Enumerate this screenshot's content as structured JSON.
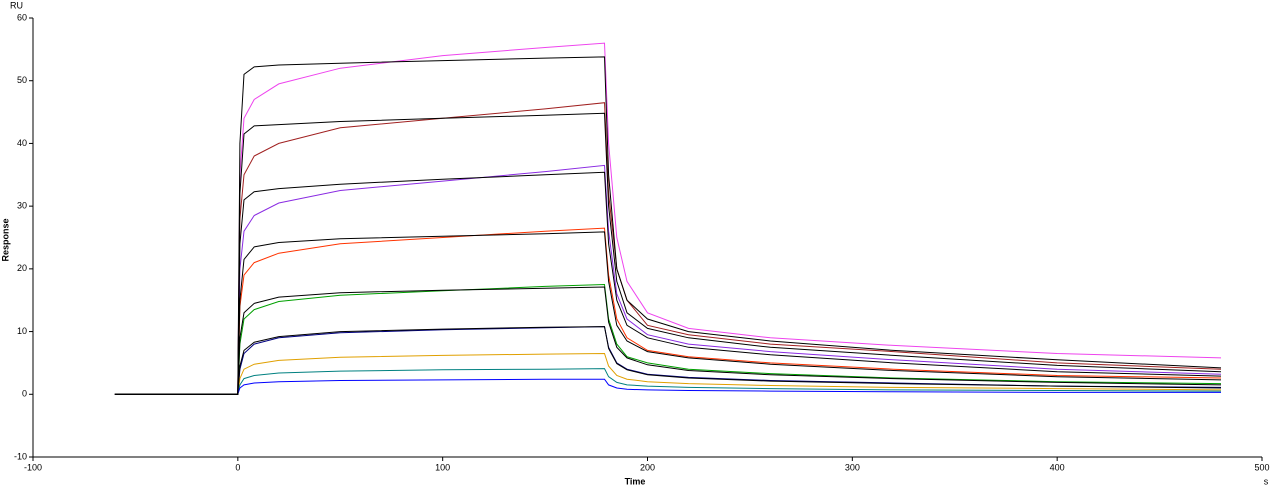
{
  "chart_data": {
    "type": "line",
    "y_unit": "RU",
    "x_unit": "s",
    "ylabel": "Response",
    "xlabel": "Time",
    "x": [
      -60,
      0,
      1,
      3,
      8,
      20,
      50,
      100,
      150,
      179,
      181,
      185,
      190,
      200,
      220,
      260,
      320,
      400,
      480
    ],
    "xlim": [
      -100,
      500
    ],
    "xticks": [
      -100,
      0,
      100,
      200,
      300,
      400,
      500
    ],
    "ylim": [
      -10,
      60
    ],
    "yticks": [
      -10,
      0,
      10,
      20,
      30,
      40,
      50,
      60
    ],
    "series": [
      {
        "color": "#ee44ee",
        "values": [
          0,
          0,
          35,
          44,
          47,
          49.5,
          52,
          54,
          55.3,
          56,
          40,
          25,
          18,
          13,
          10.5,
          9,
          7.8,
          6.5,
          5.8
        ]
      },
      {
        "color": "#a02020",
        "values": [
          0,
          0,
          28,
          35,
          38,
          40,
          42.5,
          44,
          45.5,
          46.5,
          32,
          20,
          15,
          11,
          9.5,
          8,
          6.8,
          5,
          4.0
        ]
      },
      {
        "color": "#8a2be2",
        "values": [
          0,
          0,
          20,
          26,
          28.5,
          30.5,
          32.5,
          34,
          35.5,
          36.5,
          26,
          16,
          12,
          9.5,
          8,
          6.8,
          5.5,
          4,
          3.2
        ]
      },
      {
        "color": "#ff3300",
        "values": [
          0,
          0,
          14,
          19,
          21,
          22.5,
          24,
          25,
          26,
          26.5,
          19,
          12,
          9,
          7,
          6,
          5,
          4,
          3,
          2.6
        ]
      },
      {
        "color": "#00a000",
        "values": [
          0,
          0,
          8,
          12,
          13.5,
          14.8,
          15.8,
          16.5,
          17.2,
          17.5,
          12,
          8,
          6,
          5,
          4,
          3.3,
          2.6,
          2,
          1.7
        ]
      },
      {
        "color": "#000080",
        "values": [
          0,
          0,
          4,
          6.5,
          8,
          9,
          9.8,
          10.3,
          10.6,
          10.8,
          7.5,
          5,
          4,
          3.2,
          2.7,
          2.2,
          1.8,
          1.3,
          1.1
        ]
      },
      {
        "color": "#e0a000",
        "values": [
          0,
          0,
          2.5,
          4,
          4.8,
          5.4,
          5.9,
          6.2,
          6.4,
          6.5,
          4.5,
          3,
          2.4,
          2,
          1.7,
          1.4,
          1.1,
          0.9,
          0.7
        ]
      },
      {
        "color": "#008080",
        "values": [
          0,
          0,
          1.5,
          2.5,
          3,
          3.4,
          3.7,
          3.9,
          4,
          4.1,
          2.8,
          1.9,
          1.5,
          1.3,
          1.1,
          0.9,
          0.7,
          0.6,
          0.5
        ]
      },
      {
        "color": "#0000ff",
        "values": [
          0,
          0,
          1,
          1.5,
          1.8,
          2,
          2.2,
          2.3,
          2.4,
          2.4,
          1.5,
          1,
          0.8,
          0.7,
          0.6,
          0.5,
          0.4,
          0.3,
          0.3
        ]
      },
      {
        "color": "#000000",
        "values": [
          0,
          0,
          40,
          51,
          52.2,
          52.5,
          52.8,
          53.2,
          53.6,
          53.8,
          35,
          20,
          15,
          12,
          10,
          8.5,
          7,
          5.5,
          4.2
        ]
      },
      {
        "color": "#000000",
        "values": [
          0,
          0,
          32,
          41.5,
          42.8,
          43,
          43.5,
          44,
          44.5,
          44.8,
          30,
          18,
          13,
          10.5,
          9,
          7.5,
          6.2,
          4.6,
          3.6
        ]
      },
      {
        "color": "#000000",
        "values": [
          0,
          0,
          24,
          31,
          32.3,
          32.8,
          33.5,
          34.3,
          35,
          35.4,
          24,
          15,
          11,
          9,
          7.5,
          6.3,
          5,
          3.6,
          2.9
        ]
      },
      {
        "color": "#000000",
        "values": [
          0,
          0,
          15,
          21.5,
          23.5,
          24.2,
          24.8,
          25.2,
          25.6,
          25.9,
          18,
          11,
          8.5,
          6.8,
          5.8,
          4.8,
          3.8,
          2.8,
          2.3
        ]
      },
      {
        "color": "#000000",
        "values": [
          0,
          0,
          9,
          13,
          14.5,
          15.5,
          16.2,
          16.6,
          16.9,
          17.1,
          11.5,
          7.5,
          5.8,
          4.7,
          3.8,
          3.1,
          2.5,
          1.9,
          1.5
        ]
      },
      {
        "color": "#000000",
        "values": [
          0,
          0,
          4.5,
          7,
          8.3,
          9.2,
          10,
          10.4,
          10.7,
          10.8,
          7.3,
          4.9,
          3.9,
          3.1,
          2.6,
          2.1,
          1.7,
          1.3,
          1.0
        ]
      }
    ]
  }
}
